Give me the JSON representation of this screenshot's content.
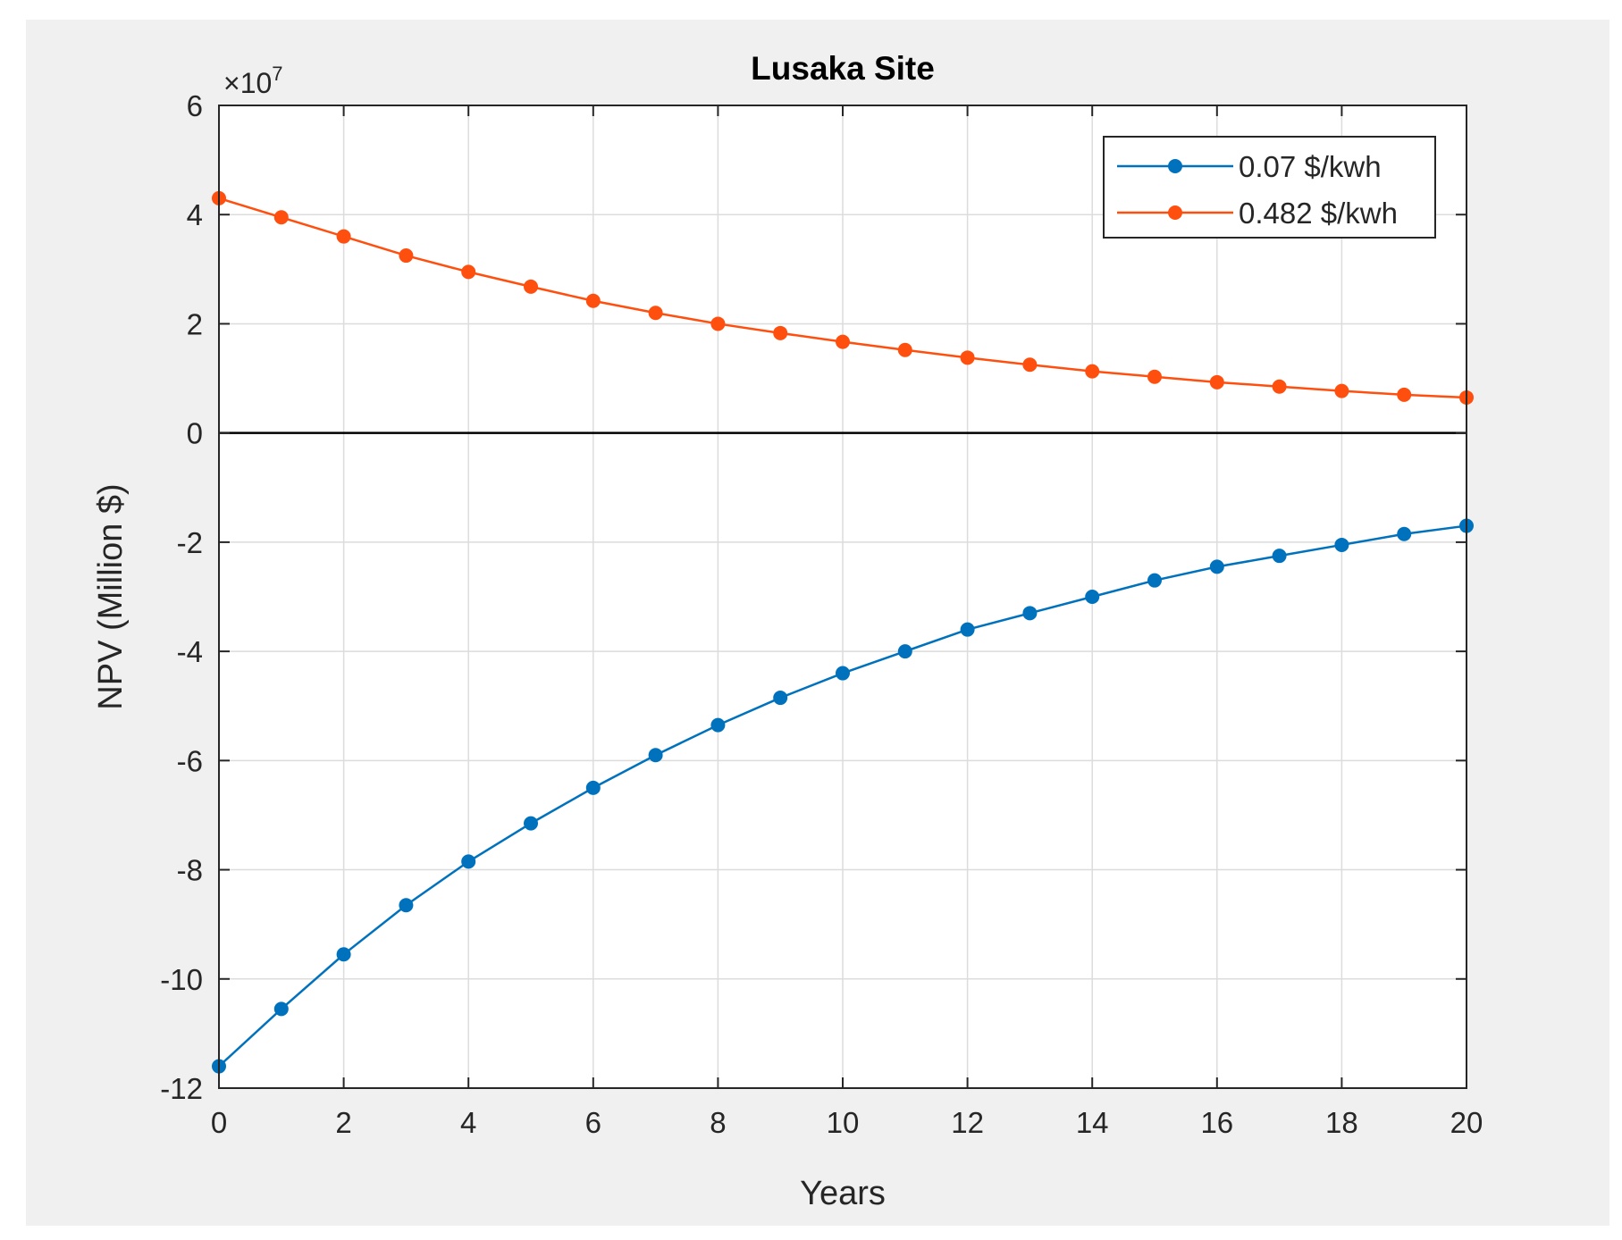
{
  "chart_data": {
    "type": "line",
    "title": "Lusaka Site",
    "xlabel": "Years",
    "ylabel": "NPV (Million $)",
    "y_exponent_label": "×10",
    "y_exponent": "7",
    "xlim": [
      0,
      20
    ],
    "ylim": [
      -12,
      6
    ],
    "xticks": [
      "0",
      "2",
      "4",
      "6",
      "8",
      "10",
      "12",
      "14",
      "16",
      "18",
      "20"
    ],
    "yticks": [
      "-12",
      "-10",
      "-8",
      "-6",
      "-4",
      "-2",
      "0",
      "2",
      "4",
      "6"
    ],
    "grid": true,
    "legend_position": "top-right",
    "x": [
      0,
      1,
      2,
      3,
      4,
      5,
      6,
      7,
      8,
      9,
      10,
      11,
      12,
      13,
      14,
      15,
      16,
      17,
      18,
      19,
      20
    ],
    "series": [
      {
        "name": "0.07 $/kwh",
        "color": "#0072bd",
        "values": [
          -11.6,
          -10.55,
          -9.55,
          -8.65,
          -7.85,
          -7.15,
          -6.5,
          -5.9,
          -5.35,
          -4.85,
          -4.4,
          -4.0,
          -3.6,
          -3.3,
          -3.0,
          -2.7,
          -2.45,
          -2.25,
          -2.05,
          -1.85,
          -1.7
        ]
      },
      {
        "name": "0.482 $/kwh",
        "color": "#ff4f0f",
        "values": [
          4.3,
          3.95,
          3.6,
          3.25,
          2.95,
          2.68,
          2.42,
          2.2,
          2.0,
          1.83,
          1.67,
          1.52,
          1.38,
          1.25,
          1.13,
          1.03,
          0.93,
          0.85,
          0.77,
          0.7,
          0.65
        ]
      }
    ]
  }
}
